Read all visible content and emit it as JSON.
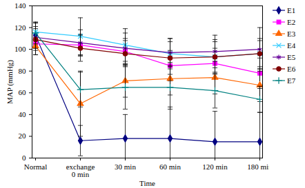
{
  "chart_data": {
    "type": "line",
    "x_label": "Time",
    "y_label": "MAP (mmHg)",
    "categories": [
      "Normal",
      "exchange 0 min",
      "30 min",
      "60 min",
      "120 min",
      "180 min"
    ],
    "ylim": [
      0,
      140
    ],
    "yticks": [
      0,
      20,
      40,
      60,
      80,
      100,
      120,
      140
    ],
    "grid": false,
    "legend": "right",
    "series": [
      {
        "name": "E1",
        "color": "#000080",
        "marker": "diamond",
        "values": [
          113,
          16,
          18,
          18,
          15,
          15
        ],
        "errors": [
          12,
          14,
          22,
          29,
          28,
          27
        ]
      },
      {
        "name": "E2",
        "color": "#ff00ff",
        "marker": "square",
        "values": [
          105,
          104,
          98,
          85,
          87,
          78
        ],
        "errors": [
          10,
          10,
          12,
          14,
          14,
          14
        ]
      },
      {
        "name": "E3",
        "color": "#ff6600",
        "marker": "triangle",
        "values": [
          103,
          50,
          71,
          73,
          74,
          67
        ],
        "errors": [
          8,
          30,
          15,
          15,
          15,
          15
        ]
      },
      {
        "name": "E4",
        "color": "#33ccff",
        "marker": "times",
        "values": [
          116,
          112,
          104,
          96,
          93,
          96
        ],
        "errors": [
          8,
          17,
          15,
          14,
          14,
          12
        ]
      },
      {
        "name": "E5",
        "color": "#660099",
        "marker": "asterisk",
        "values": [
          111,
          106,
          101,
          97,
          98,
          100
        ],
        "errors": [
          10,
          12,
          14,
          13,
          15,
          20
        ]
      },
      {
        "name": "E6",
        "color": "#800000",
        "marker": "circle",
        "values": [
          109,
          101,
          96,
          92,
          93,
          96
        ],
        "errors": [
          10,
          12,
          12,
          15,
          16,
          14
        ]
      },
      {
        "name": "E7",
        "color": "#008080",
        "marker": "plus",
        "values": [
          115,
          63,
          65,
          65,
          62,
          54
        ],
        "errors": [
          10,
          16,
          20,
          20,
          16,
          12
        ]
      }
    ]
  }
}
